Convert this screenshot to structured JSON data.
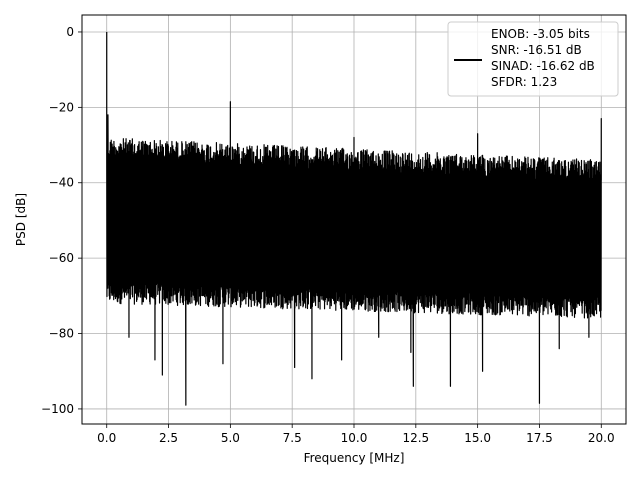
{
  "chart_data": {
    "type": "line",
    "title": "",
    "xlabel": "Frequency [MHz]",
    "ylabel": "PSD [dB]",
    "xlim": [
      -1.0,
      21.0
    ],
    "ylim": [
      -104.0,
      4.5
    ],
    "x_ticks": [
      0.0,
      2.5,
      5.0,
      7.5,
      10.0,
      12.5,
      15.0,
      17.5,
      20.0
    ],
    "x_tick_labels": [
      "0.0",
      "2.5",
      "5.0",
      "7.5",
      "10.0",
      "12.5",
      "15.0",
      "17.5",
      "20.0"
    ],
    "y_ticks": [
      0,
      -20,
      -40,
      -60,
      -80,
      -100
    ],
    "y_tick_labels": [
      "0",
      "−20",
      "−40",
      "−60",
      "−80",
      "−100"
    ],
    "grid": true,
    "line_color": "#000000",
    "legend": {
      "location": "upper right",
      "entries": [
        "ENOB: -3.05 bits",
        "SNR: -16.51 dB",
        "SINAD: -16.62 dB",
        "SFDR: 1.23"
      ]
    },
    "noise_floor": {
      "x_range": [
        0.0,
        20.0
      ],
      "upper_envelope_start": -28,
      "upper_envelope_end": -34,
      "lower_envelope_start": -72,
      "lower_envelope_end": -76
    },
    "spikes": [
      {
        "x": 0.0,
        "y": 0
      },
      {
        "x": 0.05,
        "y": -22
      },
      {
        "x": 5.0,
        "y": -18.5
      },
      {
        "x": 10.0,
        "y": -28
      },
      {
        "x": 15.0,
        "y": -27
      },
      {
        "x": 20.0,
        "y": -23
      }
    ],
    "dips": [
      {
        "x": 0.9,
        "y": -81
      },
      {
        "x": 1.95,
        "y": -87
      },
      {
        "x": 2.25,
        "y": -91
      },
      {
        "x": 3.2,
        "y": -99
      },
      {
        "x": 4.7,
        "y": -88
      },
      {
        "x": 7.6,
        "y": -89
      },
      {
        "x": 8.3,
        "y": -92
      },
      {
        "x": 9.5,
        "y": -87
      },
      {
        "x": 11.0,
        "y": -81
      },
      {
        "x": 12.3,
        "y": -85
      },
      {
        "x": 12.4,
        "y": -94
      },
      {
        "x": 13.9,
        "y": -94
      },
      {
        "x": 15.2,
        "y": -90
      },
      {
        "x": 17.5,
        "y": -98.5
      },
      {
        "x": 18.3,
        "y": -84
      },
      {
        "x": 19.5,
        "y": -81
      }
    ]
  }
}
